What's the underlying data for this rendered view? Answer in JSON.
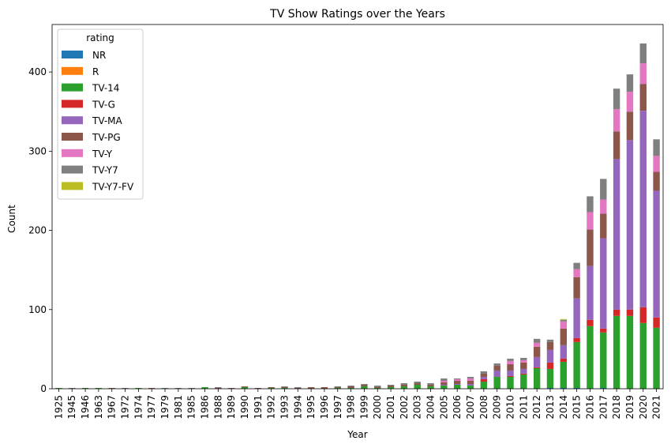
{
  "chart_data": {
    "type": "bar",
    "stacked": true,
    "title": "TV Show Ratings over the Years",
    "xlabel": "Year",
    "ylabel": "Count",
    "ylim": [
      0,
      460
    ],
    "yticks": [
      0,
      100,
      200,
      300,
      400
    ],
    "grid": false,
    "legend": {
      "title": "rating",
      "placement": "top-left"
    },
    "categories": [
      "1925",
      "1945",
      "1946",
      "1963",
      "1967",
      "1972",
      "1974",
      "1977",
      "1979",
      "1981",
      "1985",
      "1986",
      "1988",
      "1989",
      "1990",
      "1991",
      "1992",
      "1993",
      "1994",
      "1995",
      "1996",
      "1997",
      "1998",
      "1999",
      "2000",
      "2001",
      "2002",
      "2003",
      "2004",
      "2005",
      "2006",
      "2007",
      "2008",
      "2009",
      "2010",
      "2011",
      "2012",
      "2013",
      "2014",
      "2015",
      "2016",
      "2017",
      "2018",
      "2019",
      "2020",
      "2021"
    ],
    "series": [
      {
        "name": "NR",
        "color": "#1f77b4",
        "values": [
          0,
          0,
          0,
          0,
          0,
          0,
          0,
          0,
          0,
          0,
          0,
          0,
          0,
          0,
          0,
          0,
          0,
          0,
          0,
          0,
          0,
          0,
          0,
          0,
          0,
          0,
          0,
          0,
          0,
          0,
          0,
          0,
          0,
          0,
          0,
          0,
          0,
          1,
          1,
          1,
          0,
          1,
          0,
          0,
          0,
          0
        ]
      },
      {
        "name": "R",
        "color": "#ff7f0e",
        "values": [
          0,
          0,
          0,
          0,
          0,
          0,
          0,
          0,
          0,
          0,
          0,
          0,
          0,
          0,
          0,
          0,
          0,
          0,
          0,
          0,
          0,
          0,
          0,
          0,
          0,
          0,
          0,
          0,
          0,
          0,
          0,
          0,
          0,
          0,
          0,
          0,
          0,
          0,
          0,
          0,
          0,
          0,
          0,
          0,
          0,
          0
        ]
      },
      {
        "name": "TV-14",
        "color": "#2ca02c",
        "values": [
          1,
          0,
          1,
          1,
          0,
          0,
          1,
          0,
          0,
          0,
          0,
          2,
          0,
          0,
          2,
          0,
          1,
          1,
          0,
          0,
          0,
          1,
          1,
          3,
          1,
          2,
          3,
          5,
          3,
          4,
          5,
          4,
          9,
          15,
          15,
          18,
          26,
          24,
          33,
          58,
          79,
          70,
          92,
          92,
          83,
          77
        ]
      },
      {
        "name": "TV-G",
        "color": "#d62728",
        "values": [
          0,
          0,
          0,
          0,
          0,
          0,
          0,
          0,
          0,
          0,
          0,
          0,
          0,
          0,
          0,
          0,
          0,
          0,
          0,
          0,
          0,
          0,
          0,
          0,
          0,
          0,
          0,
          0,
          0,
          0,
          0,
          0,
          3,
          0,
          1,
          1,
          1,
          8,
          4,
          5,
          8,
          5,
          8,
          8,
          20,
          13
        ]
      },
      {
        "name": "TV-MA",
        "color": "#9467bd",
        "values": [
          0,
          0,
          0,
          0,
          0,
          0,
          0,
          0,
          0,
          0,
          0,
          0,
          0,
          0,
          0,
          0,
          0,
          0,
          0,
          0,
          0,
          0,
          0,
          0,
          0,
          0,
          0,
          0,
          0,
          1,
          1,
          2,
          3,
          8,
          7,
          6,
          13,
          16,
          17,
          50,
          68,
          114,
          190,
          214,
          248,
          160
        ]
      },
      {
        "name": "TV-PG",
        "color": "#8c564b",
        "values": [
          0,
          0,
          0,
          0,
          1,
          0,
          0,
          1,
          0,
          0,
          0,
          0,
          1,
          1,
          1,
          1,
          1,
          1,
          1,
          2,
          2,
          1,
          2,
          2,
          1,
          2,
          2,
          2,
          2,
          3,
          4,
          4,
          4,
          6,
          8,
          8,
          13,
          10,
          21,
          27,
          46,
          31,
          35,
          36,
          34,
          24
        ]
      },
      {
        "name": "TV-Y",
        "color": "#e377c2",
        "values": [
          0,
          0,
          0,
          0,
          0,
          0,
          0,
          0,
          0,
          0,
          0,
          0,
          0,
          0,
          0,
          0,
          0,
          0,
          0,
          0,
          0,
          0,
          0,
          0,
          0,
          0,
          0,
          0,
          0,
          2,
          2,
          3,
          0,
          0,
          4,
          3,
          5,
          0,
          9,
          10,
          22,
          18,
          28,
          25,
          26,
          20
        ]
      },
      {
        "name": "TV-Y7",
        "color": "#7f7f7f",
        "values": [
          0,
          1,
          0,
          0,
          0,
          1,
          0,
          0,
          1,
          1,
          1,
          0,
          1,
          0,
          0,
          0,
          0,
          1,
          1,
          0,
          0,
          1,
          1,
          1,
          2,
          1,
          2,
          2,
          2,
          3,
          1,
          2,
          3,
          3,
          3,
          3,
          5,
          3,
          2,
          8,
          20,
          26,
          26,
          22,
          25,
          21
        ]
      },
      {
        "name": "TV-Y7-FV",
        "color": "#bcbd22",
        "values": [
          0,
          0,
          0,
          0,
          0,
          0,
          0,
          0,
          0,
          0,
          0,
          0,
          0,
          0,
          0,
          0,
          0,
          0,
          0,
          0,
          0,
          0,
          0,
          0,
          0,
          0,
          0,
          0,
          0,
          0,
          0,
          0,
          0,
          0,
          0,
          0,
          0,
          0,
          1,
          0,
          0,
          0,
          0,
          0,
          0,
          0
        ]
      }
    ]
  }
}
